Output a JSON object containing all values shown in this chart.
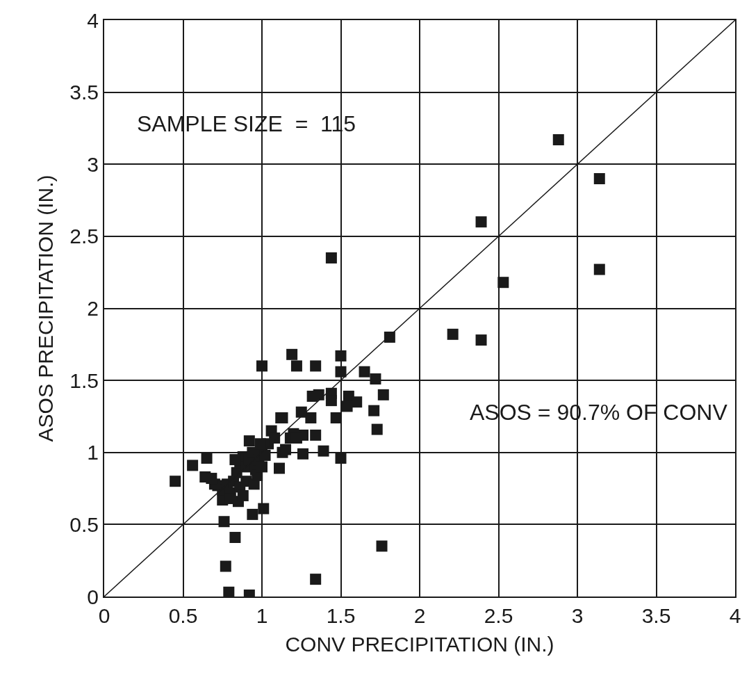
{
  "chart_data": {
    "type": "scatter",
    "xlabel": "CONV PRECIPITATION (IN.)",
    "ylabel": "ASOS PRECIPITATION (IN.)",
    "annotations": [
      "SAMPLE SIZE  =  115",
      "ASOS = 90.7% OF CONV"
    ],
    "xlim": [
      0,
      4
    ],
    "ylim": [
      0,
      4
    ],
    "xticks": [
      0,
      0.5,
      1,
      1.5,
      2,
      2.5,
      3,
      3.5,
      4
    ],
    "yticks": [
      0,
      0.5,
      1,
      1.5,
      2,
      2.5,
      3,
      3.5,
      4
    ],
    "grid": true,
    "series": [
      {
        "color": "#1a1a1a",
        "marker": "square",
        "x": [
          0.45,
          0.56,
          0.65,
          0.64,
          1.0,
          1.19,
          0.76,
          0.83,
          0.77,
          0.79,
          0.92,
          1.01,
          0.94,
          0.75,
          0.85,
          0.92,
          1.12,
          1.13,
          1.11,
          1.2,
          1.22,
          1.34,
          1.5,
          1.5,
          1.65,
          1.72,
          1.77,
          1.71,
          1.73,
          1.44,
          1.44,
          1.55,
          1.6,
          1.54,
          1.47,
          1.32,
          1.36,
          1.31,
          1.25,
          1.13,
          1.26,
          1.34,
          1.26,
          1.39,
          1.5,
          1.34,
          1.76,
          1.44,
          2.88,
          3.14,
          2.39,
          3.14,
          2.53,
          2.21,
          2.39,
          1.81,
          0.72,
          0.75,
          0.78,
          0.8,
          0.82,
          0.84,
          0.86,
          0.88,
          0.9,
          0.92,
          0.94,
          0.96,
          0.98,
          1.0,
          1.02,
          1.04,
          1.06,
          0.86,
          0.88,
          0.9,
          0.95,
          0.97,
          1.0,
          0.8,
          0.7,
          0.68,
          0.83,
          0.99,
          1.08,
          1.15,
          1.18,
          1.22
        ],
        "values": [
          0.8,
          0.91,
          0.96,
          0.83,
          1.6,
          1.68,
          0.52,
          0.41,
          0.21,
          0.03,
          0.01,
          0.61,
          0.57,
          0.67,
          0.66,
          1.08,
          1.24,
          1.0,
          0.89,
          1.13,
          1.6,
          1.6,
          1.67,
          1.56,
          1.56,
          1.51,
          1.4,
          1.29,
          1.16,
          1.41,
          1.36,
          1.39,
          1.35,
          1.32,
          1.24,
          1.39,
          1.4,
          1.24,
          1.28,
          1.24,
          1.12,
          1.12,
          0.99,
          1.01,
          0.96,
          0.12,
          0.35,
          2.35,
          3.17,
          2.9,
          2.6,
          2.27,
          2.18,
          1.82,
          1.78,
          1.8,
          0.77,
          0.74,
          0.78,
          0.72,
          0.8,
          0.86,
          0.93,
          0.97,
          0.9,
          0.95,
          1.0,
          0.88,
          0.95,
          1.02,
          0.98,
          1.06,
          1.15,
          0.76,
          0.7,
          0.8,
          0.78,
          0.84,
          0.9,
          0.68,
          0.78,
          0.82,
          0.95,
          1.06,
          1.1,
          1.02,
          1.1,
          1.1
        ]
      },
      {
        "type": "line",
        "color": "#1a1a1a",
        "x": [
          0,
          4
        ],
        "values": [
          0,
          4
        ]
      }
    ]
  }
}
